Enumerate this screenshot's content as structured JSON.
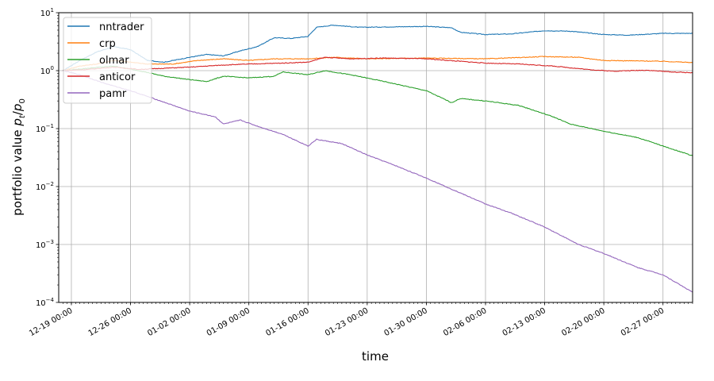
{
  "chart_data": {
    "type": "line",
    "title": "",
    "xlabel": "time",
    "ylabel_text": "portfolio value ",
    "ylabel_math": "p",
    "ylabel_math_sub_t": "t",
    "ylabel_math_sep": "/",
    "ylabel_math_sub_0": "0",
    "yscale": "log",
    "ylim": [
      0.0001,
      10
    ],
    "xlim": [
      "2017-12-17 12:00",
      "2018-03-02 12:00"
    ],
    "grid": true,
    "legend_position": "upper-left",
    "yticks": [
      {
        "value": 0.0001,
        "base": "10",
        "exp": "−4"
      },
      {
        "value": 0.001,
        "base": "10",
        "exp": "−3"
      },
      {
        "value": 0.01,
        "base": "10",
        "exp": "−2"
      },
      {
        "value": 0.1,
        "base": "10",
        "exp": "−1"
      },
      {
        "value": 1,
        "base": "10",
        "exp": "0"
      },
      {
        "value": 10,
        "base": "10",
        "exp": "1"
      }
    ],
    "xticks": [
      {
        "value": "2017-12-19 00:00",
        "label": "12-19 00:00"
      },
      {
        "value": "2017-12-26 00:00",
        "label": "12-26 00:00"
      },
      {
        "value": "2018-01-02 00:00",
        "label": "01-02 00:00"
      },
      {
        "value": "2018-01-09 00:00",
        "label": "01-09 00:00"
      },
      {
        "value": "2018-01-16 00:00",
        "label": "01-16 00:00"
      },
      {
        "value": "2018-01-23 00:00",
        "label": "01-23 00:00"
      },
      {
        "value": "2018-01-30 00:00",
        "label": "01-30 00:00"
      },
      {
        "value": "2018-02-06 00:00",
        "label": "02-06 00:00"
      },
      {
        "value": "2018-02-13 00:00",
        "label": "02-13 00:00"
      },
      {
        "value": "2018-02-20 00:00",
        "label": "02-20 00:00"
      },
      {
        "value": "2018-02-27 00:00",
        "label": "02-27 00:00"
      }
    ],
    "series": [
      {
        "name": "nntrader",
        "color": "#1f77b4",
        "points": [
          [
            "2017-12-18 00:00",
            1.0
          ],
          [
            "2017-12-20 00:00",
            1.5
          ],
          [
            "2017-12-22 00:00",
            2.1
          ],
          [
            "2017-12-24 00:00",
            2.6
          ],
          [
            "2017-12-26 00:00",
            2.3
          ],
          [
            "2017-12-28 00:00",
            1.5
          ],
          [
            "2017-12-30 00:00",
            1.4
          ],
          [
            "2018-01-02 00:00",
            1.7
          ],
          [
            "2018-01-04 00:00",
            1.9
          ],
          [
            "2018-01-06 00:00",
            1.8
          ],
          [
            "2018-01-08 00:00",
            2.2
          ],
          [
            "2018-01-10 00:00",
            2.6
          ],
          [
            "2018-01-12 00:00",
            3.7
          ],
          [
            "2018-01-14 00:00",
            3.6
          ],
          [
            "2018-01-16 00:00",
            3.9
          ],
          [
            "2018-01-17 00:00",
            5.6
          ],
          [
            "2018-01-19 00:00",
            6.1
          ],
          [
            "2018-01-22 00:00",
            5.6
          ],
          [
            "2018-01-26 00:00",
            5.7
          ],
          [
            "2018-01-30 00:00",
            5.8
          ],
          [
            "2018-02-02 00:00",
            5.5
          ],
          [
            "2018-02-03 00:00",
            4.6
          ],
          [
            "2018-02-06 00:00",
            4.2
          ],
          [
            "2018-02-09 00:00",
            4.3
          ],
          [
            "2018-02-13 00:00",
            4.9
          ],
          [
            "2018-02-16 00:00",
            4.8
          ],
          [
            "2018-02-20 00:00",
            4.2
          ],
          [
            "2018-02-23 00:00",
            4.1
          ],
          [
            "2018-02-27 00:00",
            4.4
          ],
          [
            "2018-03-02 12:00",
            4.4
          ]
        ]
      },
      {
        "name": "crp",
        "color": "#ff7f0e",
        "points": [
          [
            "2017-12-18 00:00",
            1.0
          ],
          [
            "2017-12-20 00:00",
            1.2
          ],
          [
            "2017-12-22 00:00",
            1.3
          ],
          [
            "2017-12-24 00:00",
            1.5
          ],
          [
            "2017-12-26 00:00",
            1.4
          ],
          [
            "2017-12-28 00:00",
            1.3
          ],
          [
            "2017-12-31 00:00",
            1.3
          ],
          [
            "2018-01-03 00:00",
            1.5
          ],
          [
            "2018-01-06 00:00",
            1.6
          ],
          [
            "2018-01-09 00:00",
            1.5
          ],
          [
            "2018-01-12 00:00",
            1.6
          ],
          [
            "2018-01-16 00:00",
            1.6
          ],
          [
            "2018-01-19 00:00",
            1.7
          ],
          [
            "2018-01-23 00:00",
            1.6
          ],
          [
            "2018-01-30 00:00",
            1.65
          ],
          [
            "2018-02-06 00:00",
            1.6
          ],
          [
            "2018-02-13 00:00",
            1.75
          ],
          [
            "2018-02-17 00:00",
            1.7
          ],
          [
            "2018-02-20 00:00",
            1.5
          ],
          [
            "2018-02-27 00:00",
            1.45
          ],
          [
            "2018-03-02 12:00",
            1.38
          ]
        ]
      },
      {
        "name": "olmar",
        "color": "#2ca02c",
        "points": [
          [
            "2017-12-18 00:00",
            1.0
          ],
          [
            "2017-12-21 00:00",
            1.1
          ],
          [
            "2017-12-24 00:00",
            1.2
          ],
          [
            "2017-12-27 00:00",
            1.0
          ],
          [
            "2017-12-30 00:00",
            0.8
          ],
          [
            "2018-01-02 00:00",
            0.7
          ],
          [
            "2018-01-04 00:00",
            0.65
          ],
          [
            "2018-01-06 00:00",
            0.8
          ],
          [
            "2018-01-09 00:00",
            0.75
          ],
          [
            "2018-01-12 00:00",
            0.8
          ],
          [
            "2018-01-13 00:00",
            0.95
          ],
          [
            "2018-01-16 00:00",
            0.85
          ],
          [
            "2018-01-18 00:00",
            1.0
          ],
          [
            "2018-01-21 00:00",
            0.85
          ],
          [
            "2018-01-25 00:00",
            0.65
          ],
          [
            "2018-01-30 00:00",
            0.45
          ],
          [
            "2018-02-02 00:00",
            0.28
          ],
          [
            "2018-02-03 00:00",
            0.33
          ],
          [
            "2018-02-06 00:00",
            0.3
          ],
          [
            "2018-02-10 00:00",
            0.25
          ],
          [
            "2018-02-14 00:00",
            0.16
          ],
          [
            "2018-02-16 00:00",
            0.12
          ],
          [
            "2018-02-20 00:00",
            0.09
          ],
          [
            "2018-02-24 00:00",
            0.07
          ],
          [
            "2018-02-27 00:00",
            0.05
          ],
          [
            "2018-03-02 12:00",
            0.034
          ]
        ]
      },
      {
        "name": "anticor",
        "color": "#d62728",
        "points": [
          [
            "2017-12-18 00:00",
            1.0
          ],
          [
            "2017-12-21 00:00",
            1.05
          ],
          [
            "2017-12-24 00:00",
            1.15
          ],
          [
            "2017-12-27 00:00",
            1.05
          ],
          [
            "2017-12-30 00:00",
            1.1
          ],
          [
            "2018-01-02 00:00",
            1.15
          ],
          [
            "2018-01-06 00:00",
            1.25
          ],
          [
            "2018-01-09 00:00",
            1.3
          ],
          [
            "2018-01-13 00:00",
            1.35
          ],
          [
            "2018-01-16 00:00",
            1.4
          ],
          [
            "2018-01-18 00:00",
            1.7
          ],
          [
            "2018-01-21 00:00",
            1.6
          ],
          [
            "2018-01-25 00:00",
            1.65
          ],
          [
            "2018-01-30 00:00",
            1.6
          ],
          [
            "2018-02-03 00:00",
            1.45
          ],
          [
            "2018-02-06 00:00",
            1.35
          ],
          [
            "2018-02-10 00:00",
            1.3
          ],
          [
            "2018-02-14 00:00",
            1.2
          ],
          [
            "2018-02-18 00:00",
            1.05
          ],
          [
            "2018-02-21 00:00",
            0.98
          ],
          [
            "2018-02-25 00:00",
            1.02
          ],
          [
            "2018-02-28 00:00",
            0.95
          ],
          [
            "2018-03-02 12:00",
            0.92
          ]
        ]
      },
      {
        "name": "pamr",
        "color": "#9467bd",
        "points": [
          [
            "2017-12-18 00:00",
            1.0
          ],
          [
            "2017-12-20 00:00",
            0.85
          ],
          [
            "2017-12-23 00:00",
            0.6
          ],
          [
            "2017-12-26 00:00",
            0.45
          ],
          [
            "2017-12-29 00:00",
            0.32
          ],
          [
            "2018-01-02 00:00",
            0.2
          ],
          [
            "2018-01-05 00:00",
            0.16
          ],
          [
            "2018-01-06 00:00",
            0.12
          ],
          [
            "2018-01-08 00:00",
            0.14
          ],
          [
            "2018-01-10 00:00",
            0.11
          ],
          [
            "2018-01-13 00:00",
            0.08
          ],
          [
            "2018-01-16 00:00",
            0.05
          ],
          [
            "2018-01-17 00:00",
            0.065
          ],
          [
            "2018-01-20 00:00",
            0.055
          ],
          [
            "2018-01-23 00:00",
            0.035
          ],
          [
            "2018-01-26 00:00",
            0.024
          ],
          [
            "2018-01-30 00:00",
            0.014
          ],
          [
            "2018-02-02 00:00",
            0.009
          ],
          [
            "2018-02-06 00:00",
            0.005
          ],
          [
            "2018-02-09 00:00",
            0.0035
          ],
          [
            "2018-02-13 00:00",
            0.002
          ],
          [
            "2018-02-17 00:00",
            0.001
          ],
          [
            "2018-02-20 00:00",
            0.0007
          ],
          [
            "2018-02-24 00:00",
            0.0004
          ],
          [
            "2018-02-27 00:00",
            0.0003
          ],
          [
            "2018-03-02 12:00",
            0.00015
          ]
        ]
      }
    ]
  }
}
